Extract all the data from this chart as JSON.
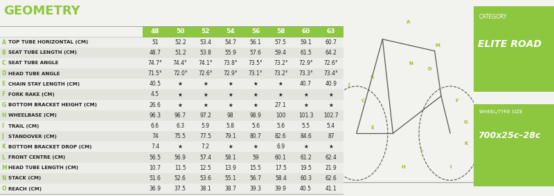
{
  "title": "GEOMETRY",
  "bg_color": "#f2f2ee",
  "header_bg": "#8dc63f",
  "header_text_color": "#ffffff",
  "sizes": [
    "48",
    "50",
    "52",
    "54",
    "56",
    "58",
    "60",
    "63"
  ],
  "rows": [
    {
      "letter": "A",
      "label": "TOP TUBE HORIZONTAL (CM)",
      "values": [
        "51",
        "52.2",
        "53.4",
        "54.7",
        "56.1",
        "57.5",
        "59.1",
        "60.7"
      ]
    },
    {
      "letter": "B",
      "label": "SEAT TUBE LENGTH (CM)",
      "values": [
        "48.7",
        "51.2",
        "53.8",
        "55.9",
        "57.6",
        "59.4",
        "61.5",
        "64.2"
      ]
    },
    {
      "letter": "C",
      "label": "SEAT TUBE ANGLE",
      "values": [
        "74.7°",
        "74.4°",
        "74.1°",
        "73.8°",
        "73.5°",
        "73.2°",
        "72.9°",
        "72.6°"
      ]
    },
    {
      "letter": "D",
      "label": "HEAD TUBE ANGLE",
      "values": [
        "71.5°",
        "72.0°",
        "72.6°",
        "72.9°",
        "73.1°",
        "73.2°",
        "73.3°",
        "73.4°"
      ]
    },
    {
      "letter": "E",
      "label": "CHAIN STAY LENGTH (CM)",
      "values": [
        "40.5",
        "★",
        "★",
        "★",
        "★",
        "★",
        "40.7",
        "40.9"
      ]
    },
    {
      "letter": "F",
      "label": "FORK RAKE (CM)",
      "values": [
        "4.5",
        "★",
        "★",
        "★",
        "★",
        "★",
        "★",
        "★"
      ]
    },
    {
      "letter": "G",
      "label": "BOTTOM BRACKET HEIGHT (CM)",
      "values": [
        "26.6",
        "★",
        "★",
        "★",
        "★",
        "27.1",
        "★",
        "★"
      ]
    },
    {
      "letter": "H",
      "label": "WHEELBASE (CM)",
      "values": [
        "96.3",
        "96.7",
        "97.2",
        "98",
        "98.9",
        "100",
        "101.3",
        "102.7"
      ]
    },
    {
      "letter": "I",
      "label": "TRAIL (CM)",
      "values": [
        "6.6",
        "6.3",
        "5.9",
        "5.8",
        "5.6",
        "5.6",
        "5.5",
        "5.4"
      ]
    },
    {
      "letter": "J",
      "label": "STANDOVER (CM)",
      "values": [
        "74",
        "75.5",
        "77.5",
        "79.1",
        "80.7",
        "82.6",
        "84.6",
        "87"
      ]
    },
    {
      "letter": "K",
      "label": "BOTTOM BRACKET DROP (CM)",
      "values": [
        "7.4",
        "★",
        "7.2",
        "★",
        "★",
        "6.9",
        "★",
        "★"
      ]
    },
    {
      "letter": "L",
      "label": "FRONT CENTRE (CM)",
      "values": [
        "56.5",
        "56.9",
        "57.4",
        "58.1",
        "59",
        "60.1",
        "61.2",
        "62.4"
      ]
    },
    {
      "letter": "M",
      "label": "HEAD TUBE LENGTH (CM)",
      "values": [
        "10.7",
        "11.5",
        "12.5",
        "13.9",
        "15.5",
        "17.5",
        "19.5",
        "21.9"
      ]
    },
    {
      "letter": "N",
      "label": "STACK (CM)",
      "values": [
        "51.6",
        "52.6",
        "53.6",
        "55.1",
        "56.7",
        "58.4",
        "60.3",
        "62.6"
      ]
    },
    {
      "letter": "O",
      "label": "REACH (CM)",
      "values": [
        "36.9",
        "37.5",
        "38.1",
        "38.7",
        "39.3",
        "39.9",
        "40.5",
        "41.1"
      ]
    }
  ],
  "category_label": "CATEGORY",
  "category_value": "ELITE ROAD",
  "wheel_label": "WHEEL/TYRE SIZE",
  "wheel_value": "700x25c–28c",
  "green_color": "#8dc63f",
  "text_dark": "#222222",
  "text_letter_color": "#8dc63f",
  "row_alt_color": "#e4e4de",
  "row_color": "#ededea",
  "line_color": "#cccccc"
}
